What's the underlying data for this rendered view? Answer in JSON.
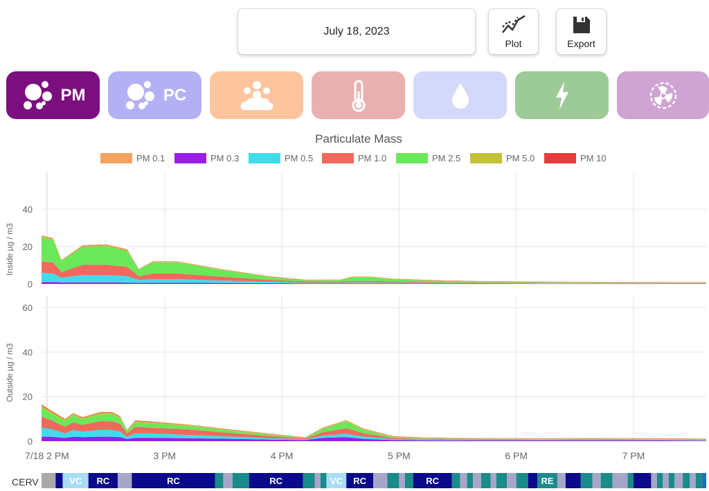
{
  "toolbar": {
    "date": "July 18, 2023",
    "plot_label": "Plot",
    "export_label": "Export"
  },
  "tabs": [
    {
      "id": "pm",
      "label": "PM",
      "icon": "particles-icon",
      "color": "#7b0f7f",
      "active": true
    },
    {
      "id": "pc",
      "label": "PC",
      "icon": "particles-icon",
      "color": "#b4b0f4",
      "active": false
    },
    {
      "id": "pet",
      "label": "",
      "icon": "paw-cloud-icon",
      "color": "#fdc49e",
      "active": false
    },
    {
      "id": "temp",
      "label": "",
      "icon": "thermometer-icon",
      "color": "#e9b0b0",
      "active": false
    },
    {
      "id": "humidity",
      "label": "",
      "icon": "water-drop-icon",
      "color": "#d4d8fb",
      "active": false
    },
    {
      "id": "power",
      "label": "",
      "icon": "lightning-icon",
      "color": "#9ccb98",
      "active": false
    },
    {
      "id": "fan",
      "label": "",
      "icon": "fan-icon",
      "color": "#cfa3d2",
      "active": false
    }
  ],
  "chart_data": {
    "type": "area",
    "title": "Particulate Mass",
    "legend": [
      {
        "name": "PM 0.1",
        "color": "#f4a460"
      },
      {
        "name": "PM 0.3",
        "color": "#9b1ee8"
      },
      {
        "name": "PM 0.5",
        "color": "#3fdcec"
      },
      {
        "name": "PM 1.0",
        "color": "#ef6a5c"
      },
      {
        "name": "PM 2.5",
        "color": "#6ae85a"
      },
      {
        "name": "PM 5.0",
        "color": "#c2c23a"
      },
      {
        "name": "PM 10",
        "color": "#e83c3c"
      }
    ],
    "legend_position": "top",
    "x_tick_labels": [
      "7/18 2 PM",
      "3 PM",
      "4 PM",
      "5 PM",
      "6 PM",
      "7 PM"
    ],
    "x_ticks_hours": [
      14,
      15,
      16,
      17,
      18,
      19
    ],
    "x_range_hours": [
      13.95,
      19.62
    ],
    "panels": [
      {
        "ylabel": "Inside µg / m3",
        "ylim": [
          0,
          60
        ],
        "y_tick_labels": [
          "0",
          "20",
          "40"
        ],
        "y_ticks": [
          0,
          20,
          40
        ],
        "x_hours": [
          13.95,
          14.05,
          14.12,
          14.3,
          14.5,
          14.68,
          14.78,
          14.9,
          15.1,
          15.5,
          15.9,
          16.2,
          16.5,
          16.6,
          16.75,
          16.95,
          17.3,
          17.7,
          18.2,
          18.8,
          19.3,
          19.62
        ],
        "series": [
          {
            "name": "PM 0.3",
            "values": [
              1,
              1,
              0.8,
              0.8,
              0.8,
              0.7,
              0.6,
              0.6,
              0.6,
              0.5,
              0.4,
              0.3,
              0.3,
              0.3,
              0.3,
              0.3,
              0.2,
              0.2,
              0.1,
              0.1,
              0.1,
              0.1
            ]
          },
          {
            "name": "PM 0.5",
            "values": [
              5,
              4.5,
              2.5,
              4,
              4,
              3.5,
              1.5,
              2,
              2,
              1.3,
              0.8,
              0.4,
              0.4,
              0.5,
              0.5,
              0.4,
              0.3,
              0.2,
              0.2,
              0.1,
              0.1,
              0.1
            ]
          },
          {
            "name": "PM 1.0",
            "values": [
              6,
              6,
              3,
              5.5,
              5.5,
              5,
              2,
              3,
              3,
              2,
              1,
              0.6,
              0.5,
              0.8,
              0.8,
              0.6,
              0.4,
              0.3,
              0.2,
              0.2,
              0.2,
              0.2
            ]
          },
          {
            "name": "PM 2.5",
            "values": [
              13,
              12,
              6,
              9.5,
              10,
              8.5,
              3.5,
              6,
              6,
              3.5,
              1.5,
              0.6,
              0.8,
              2,
              2,
              1.2,
              0.8,
              0.5,
              0.4,
              0.3,
              0.2,
              0.2
            ]
          },
          {
            "name": "PM 5.0",
            "values": [
              0.5,
              0.5,
              0.3,
              0.4,
              0.4,
              0.4,
              0.2,
              0.3,
              0.3,
              0.2,
              0.1,
              0.1,
              0.1,
              0.1,
              0.1,
              0.1,
              0.1,
              0.1,
              0.1,
              0.1,
              0.1,
              0.1
            ]
          },
          {
            "name": "PM 10",
            "values": [
              0.2,
              0.2,
              0.1,
              0.2,
              0.2,
              0.2,
              0.1,
              0.1,
              0.1,
              0.1,
              0.1,
              0.1,
              0.1,
              0.1,
              0.1,
              0.1,
              0.1,
              0.1,
              0.1,
              0.1,
              0.1,
              0.1
            ]
          },
          {
            "name": "PM 0.1",
            "values": [
              0.3,
              0.3,
              0.2,
              0.3,
              0.3,
              0.3,
              0.2,
              0.2,
              0.2,
              0.2,
              0.2,
              0.2,
              0.2,
              0.2,
              0.2,
              0.2,
              0.2,
              0.2,
              0.2,
              0.2,
              0.2,
              0.2
            ]
          }
        ]
      },
      {
        "ylabel": "Outside µg / m3",
        "ylim": [
          0,
          65
        ],
        "y_tick_labels": [
          "0",
          "20",
          "40",
          "60"
        ],
        "y_ticks": [
          0,
          20,
          40,
          60
        ],
        "x_hours": [
          13.95,
          14.03,
          14.15,
          14.22,
          14.3,
          14.45,
          14.55,
          14.62,
          14.68,
          14.75,
          14.88,
          15.2,
          15.6,
          15.9,
          16.2,
          16.35,
          16.55,
          16.7,
          16.95,
          17.2,
          17.6,
          18.2,
          18.6,
          19.2,
          19.62
        ],
        "series": [
          {
            "name": "PM 0.3",
            "values": [
              2,
              2,
              1.5,
              2,
              1.8,
              2,
              2,
              1.8,
              1,
              1.5,
              1.5,
              1.3,
              1,
              0.7,
              0.5,
              1.5,
              1.8,
              1,
              0.5,
              0.4,
              0.3,
              0.3,
              0.3,
              0.3,
              0.2
            ]
          },
          {
            "name": "PM 0.5",
            "values": [
              4,
              3.5,
              2,
              3,
              2.5,
              3,
              3,
              2.5,
              1,
              2,
              2,
              1.5,
              1,
              0.6,
              0.3,
              1,
              1.5,
              1,
              0.4,
              0.3,
              0.2,
              0.2,
              0.2,
              0.2,
              0.2
            ]
          },
          {
            "name": "PM 1.0",
            "values": [
              5,
              4,
              3,
              3.5,
              3,
              4,
              4,
              3.5,
              1.5,
              3,
              2.5,
              2.5,
              1.5,
              1,
              0.4,
              1.5,
              2.5,
              1.5,
              0.5,
              0.3,
              0.3,
              0.2,
              0.3,
              0.2,
              0.2
            ]
          },
          {
            "name": "PM 2.5",
            "values": [
              4,
              3,
              2.5,
              3,
              2.5,
              3,
              3,
              2.5,
              1,
              2,
              2,
              1.5,
              1,
              0.6,
              0.2,
              1.5,
              3,
              1.5,
              0.5,
              0.3,
              0.2,
              0.2,
              0.2,
              0.2,
              0.2
            ]
          },
          {
            "name": "PM 5.0",
            "values": [
              1,
              0.8,
              0.6,
              0.7,
              0.6,
              0.7,
              0.7,
              0.6,
              0.4,
              0.5,
              0.5,
              0.4,
              0.3,
              0.2,
              0.1,
              0.3,
              0.4,
              0.3,
              0.1,
              0.1,
              0.1,
              0.1,
              0.1,
              0.1,
              0.1
            ]
          },
          {
            "name": "PM 10",
            "values": [
              0.3,
              0.3,
              0.2,
              0.2,
              0.2,
              0.2,
              0.2,
              0.2,
              0.1,
              0.2,
              0.2,
              0.1,
              0.1,
              0.1,
              0.1,
              0.1,
              0.1,
              0.1,
              0.1,
              0.1,
              0.1,
              0.1,
              0.1,
              0.1,
              0.1
            ]
          },
          {
            "name": "PM 0.1",
            "values": [
              0.3,
              0.3,
              0.2,
              0.2,
              0.2,
              0.2,
              0.2,
              0.2,
              0.1,
              0.2,
              0.2,
              0.2,
              0.2,
              0.2,
              0.2,
              0.2,
              0.2,
              0.2,
              0.2,
              0.2,
              0.2,
              0.2,
              0.2,
              0.2,
              0.2
            ]
          }
        ]
      }
    ]
  },
  "cerv": {
    "label": "CERV",
    "colors": {
      "gray": "#a9a9a9",
      "navy": "#0a0a8a",
      "light": "#a8dcf5",
      "teal": "#1a8a8a",
      "lav": "#a6a6c8",
      "blue": "#1e6fb8"
    },
    "segments": [
      {
        "start": 13.95,
        "end": 14.07,
        "color": "gray",
        "label": ""
      },
      {
        "start": 14.07,
        "end": 14.13,
        "color": "navy",
        "label": ""
      },
      {
        "start": 14.13,
        "end": 14.35,
        "color": "light",
        "label": "VC"
      },
      {
        "start": 14.35,
        "end": 14.6,
        "color": "navy",
        "label": "RC"
      },
      {
        "start": 14.6,
        "end": 14.72,
        "color": "lav",
        "label": ""
      },
      {
        "start": 14.72,
        "end": 15.43,
        "color": "navy",
        "label": "RC"
      },
      {
        "start": 15.43,
        "end": 15.5,
        "color": "teal",
        "label": ""
      },
      {
        "start": 15.5,
        "end": 15.58,
        "color": "lav",
        "label": ""
      },
      {
        "start": 15.58,
        "end": 15.72,
        "color": "teal",
        "label": ""
      },
      {
        "start": 15.72,
        "end": 16.18,
        "color": "navy",
        "label": "RC"
      },
      {
        "start": 16.18,
        "end": 16.28,
        "color": "teal",
        "label": ""
      },
      {
        "start": 16.28,
        "end": 16.33,
        "color": "lav",
        "label": ""
      },
      {
        "start": 16.33,
        "end": 16.38,
        "color": "teal",
        "label": ""
      },
      {
        "start": 16.38,
        "end": 16.55,
        "color": "light",
        "label": "VC"
      },
      {
        "start": 16.55,
        "end": 16.78,
        "color": "navy",
        "label": "RC"
      },
      {
        "start": 16.78,
        "end": 16.9,
        "color": "lav",
        "label": ""
      },
      {
        "start": 16.9,
        "end": 17.0,
        "color": "teal",
        "label": ""
      },
      {
        "start": 17.0,
        "end": 17.05,
        "color": "lav",
        "label": ""
      },
      {
        "start": 17.05,
        "end": 17.12,
        "color": "teal",
        "label": ""
      },
      {
        "start": 17.12,
        "end": 17.45,
        "color": "navy",
        "label": "RC"
      },
      {
        "start": 17.45,
        "end": 17.52,
        "color": "teal",
        "label": ""
      },
      {
        "start": 17.52,
        "end": 17.58,
        "color": "lav",
        "label": ""
      },
      {
        "start": 17.58,
        "end": 17.63,
        "color": "teal",
        "label": ""
      },
      {
        "start": 17.63,
        "end": 17.7,
        "color": "lav",
        "label": ""
      },
      {
        "start": 17.7,
        "end": 17.78,
        "color": "teal",
        "label": ""
      },
      {
        "start": 17.78,
        "end": 17.83,
        "color": "lav",
        "label": ""
      },
      {
        "start": 17.83,
        "end": 17.92,
        "color": "teal",
        "label": ""
      },
      {
        "start": 17.92,
        "end": 18.0,
        "color": "lav",
        "label": ""
      },
      {
        "start": 18.0,
        "end": 18.1,
        "color": "teal",
        "label": ""
      },
      {
        "start": 18.1,
        "end": 18.18,
        "color": "navy",
        "label": ""
      },
      {
        "start": 18.18,
        "end": 18.35,
        "color": "teal",
        "label": "RE"
      },
      {
        "start": 18.35,
        "end": 18.42,
        "color": "lav",
        "label": ""
      },
      {
        "start": 18.42,
        "end": 18.55,
        "color": "navy",
        "label": ""
      },
      {
        "start": 18.55,
        "end": 18.65,
        "color": "teal",
        "label": ""
      },
      {
        "start": 18.65,
        "end": 18.72,
        "color": "lav",
        "label": ""
      },
      {
        "start": 18.72,
        "end": 18.82,
        "color": "teal",
        "label": ""
      },
      {
        "start": 18.82,
        "end": 18.95,
        "color": "lav",
        "label": ""
      },
      {
        "start": 18.95,
        "end": 19.0,
        "color": "teal",
        "label": ""
      },
      {
        "start": 19.0,
        "end": 19.15,
        "color": "navy",
        "label": ""
      },
      {
        "start": 19.15,
        "end": 19.2,
        "color": "lav",
        "label": ""
      },
      {
        "start": 19.2,
        "end": 19.25,
        "color": "teal",
        "label": ""
      },
      {
        "start": 19.25,
        "end": 19.3,
        "color": "lav",
        "label": ""
      },
      {
        "start": 19.3,
        "end": 19.35,
        "color": "teal",
        "label": ""
      },
      {
        "start": 19.35,
        "end": 19.42,
        "color": "lav",
        "label": ""
      },
      {
        "start": 19.42,
        "end": 19.48,
        "color": "teal",
        "label": ""
      },
      {
        "start": 19.48,
        "end": 19.53,
        "color": "lav",
        "label": ""
      },
      {
        "start": 19.53,
        "end": 19.58,
        "color": "teal",
        "label": ""
      },
      {
        "start": 19.58,
        "end": 19.62,
        "color": "blue",
        "label": ""
      }
    ]
  }
}
